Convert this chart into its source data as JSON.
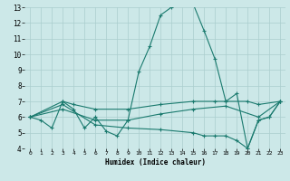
{
  "xlabel": "Humidex (Indice chaleur)",
  "xlim": [
    -0.5,
    23.5
  ],
  "ylim": [
    4,
    13
  ],
  "yticks": [
    4,
    5,
    6,
    7,
    8,
    9,
    10,
    11,
    12,
    13
  ],
  "xticks": [
    0,
    1,
    2,
    3,
    4,
    5,
    6,
    7,
    8,
    9,
    10,
    11,
    12,
    13,
    14,
    15,
    16,
    17,
    18,
    19,
    20,
    21,
    22,
    23
  ],
  "bg_color": "#cce8e8",
  "line_color": "#1a7a6e",
  "grid_color": "#aacece",
  "lines": [
    {
      "x": [
        0,
        1,
        2,
        3,
        4,
        5,
        6,
        7,
        8,
        9,
        10,
        11,
        12,
        13,
        14,
        15,
        16,
        17,
        18,
        19,
        20,
        21,
        22,
        23
      ],
      "y": [
        6.0,
        5.8,
        5.3,
        7.0,
        6.5,
        5.3,
        6.0,
        5.1,
        4.8,
        5.8,
        8.9,
        10.5,
        12.5,
        13.0,
        13.2,
        13.2,
        11.5,
        9.7,
        7.0,
        7.5,
        4.0,
        5.8,
        6.0,
        7.0
      ]
    },
    {
      "x": [
        0,
        3,
        4,
        6,
        9,
        12,
        15,
        17,
        18,
        20,
        21,
        23
      ],
      "y": [
        6.0,
        7.0,
        6.8,
        6.5,
        6.5,
        6.8,
        7.0,
        7.0,
        7.0,
        7.0,
        6.8,
        7.0
      ]
    },
    {
      "x": [
        0,
        3,
        6,
        9,
        12,
        15,
        18,
        21,
        23
      ],
      "y": [
        6.0,
        6.5,
        5.8,
        5.8,
        6.2,
        6.5,
        6.7,
        6.0,
        7.0
      ]
    },
    {
      "x": [
        0,
        3,
        6,
        9,
        12,
        15,
        16,
        17,
        18,
        19,
        20,
        21,
        22,
        23
      ],
      "y": [
        6.0,
        6.8,
        5.5,
        5.3,
        5.2,
        5.0,
        4.8,
        4.8,
        4.8,
        4.5,
        4.0,
        5.8,
        6.0,
        7.0
      ]
    }
  ]
}
